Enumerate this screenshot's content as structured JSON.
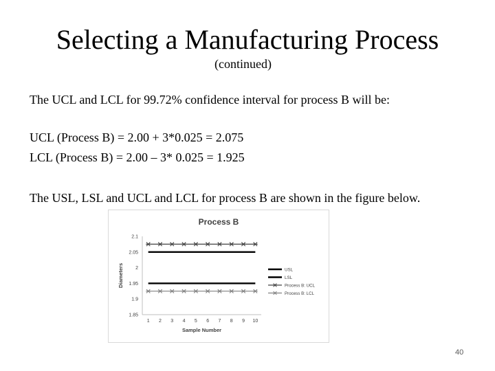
{
  "slide": {
    "title": "Selecting a Manufacturing Process",
    "subtitle": "(continued)",
    "intro": "The UCL and LCL for 99.72% confidence interval for process B will be:",
    "ucl_eq": "UCL (Process B)  = 2.00 + 3*0.025 = 2.075",
    "lcl_eq": "LCL (Process B) = 2.00 – 3* 0.025 = 1.925",
    "figure_intro": "The USL, LSL and UCL and LCL for process B are shown in the figure below.",
    "slide_number": "40"
  },
  "chart_data": {
    "type": "line",
    "title": "Process B",
    "xlabel": "Sample Number",
    "ylabel": "Diameters",
    "x": [
      1,
      2,
      3,
      4,
      5,
      6,
      7,
      8,
      9,
      10
    ],
    "x_tick_labels": [
      "1",
      "2",
      "3",
      "4",
      "5",
      "6",
      "7",
      "8",
      "9",
      "10"
    ],
    "ylim": [
      1.85,
      2.1
    ],
    "y_tick_values": [
      1.85,
      1.9,
      1.95,
      2,
      2.05,
      2.1
    ],
    "y_tick_labels": [
      "1.85",
      "1.9",
      "1.95",
      "2",
      "2.05",
      "2.1"
    ],
    "grid": false,
    "legend_position": "right",
    "series": [
      {
        "name": "USL",
        "values": [
          2.05,
          2.05,
          2.05,
          2.05,
          2.05,
          2.05,
          2.05,
          2.05,
          2.05,
          2.05
        ],
        "marker": "none",
        "color": "#000000"
      },
      {
        "name": "LSL",
        "values": [
          1.95,
          1.95,
          1.95,
          1.95,
          1.95,
          1.95,
          1.95,
          1.95,
          1.95,
          1.95
        ],
        "marker": "none",
        "color": "#000000"
      },
      {
        "name": "Process B: UCL",
        "values": [
          2.075,
          2.075,
          2.075,
          2.075,
          2.075,
          2.075,
          2.075,
          2.075,
          2.075,
          2.075
        ],
        "marker": "star",
        "color": "#404040"
      },
      {
        "name": "Process B: LCL",
        "values": [
          1.925,
          1.925,
          1.925,
          1.925,
          1.925,
          1.925,
          1.925,
          1.925,
          1.925,
          1.925
        ],
        "marker": "star",
        "color": "#808080"
      }
    ]
  }
}
